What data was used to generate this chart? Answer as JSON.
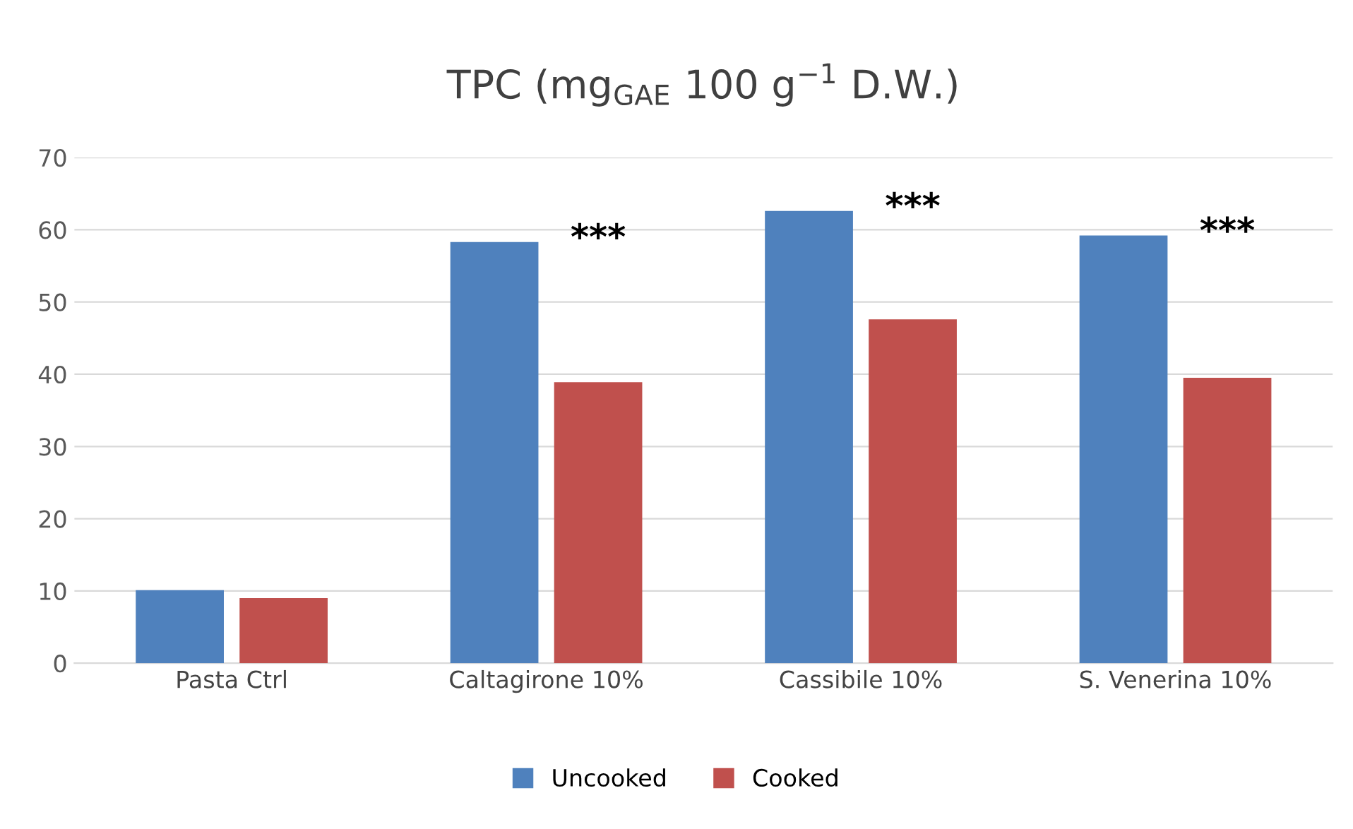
{
  "chart_data": {
    "type": "bar",
    "title": "TPC (mg$_{GAE}$ 100 g$^{−1}$ D.W.)",
    "categories": [
      "Pasta Ctrl",
      "Caltagirone 10%",
      "Cassibile 10%",
      "S. Venerina 10%"
    ],
    "series": [
      {
        "name": "Uncooked",
        "color": "#4f81bd",
        "values": [
          10.1,
          58.3,
          62.6,
          59.2
        ]
      },
      {
        "name": "Cooked",
        "color": "#c0504d",
        "values": [
          9.0,
          38.9,
          47.6,
          39.5
        ]
      }
    ],
    "annotations": [
      "***",
      "***",
      "***"
    ],
    "ylim": [
      0,
      70
    ],
    "yticks": [
      0,
      10,
      20,
      30,
      40,
      50,
      60,
      70
    ],
    "grid": "y",
    "legend": "bottom"
  }
}
